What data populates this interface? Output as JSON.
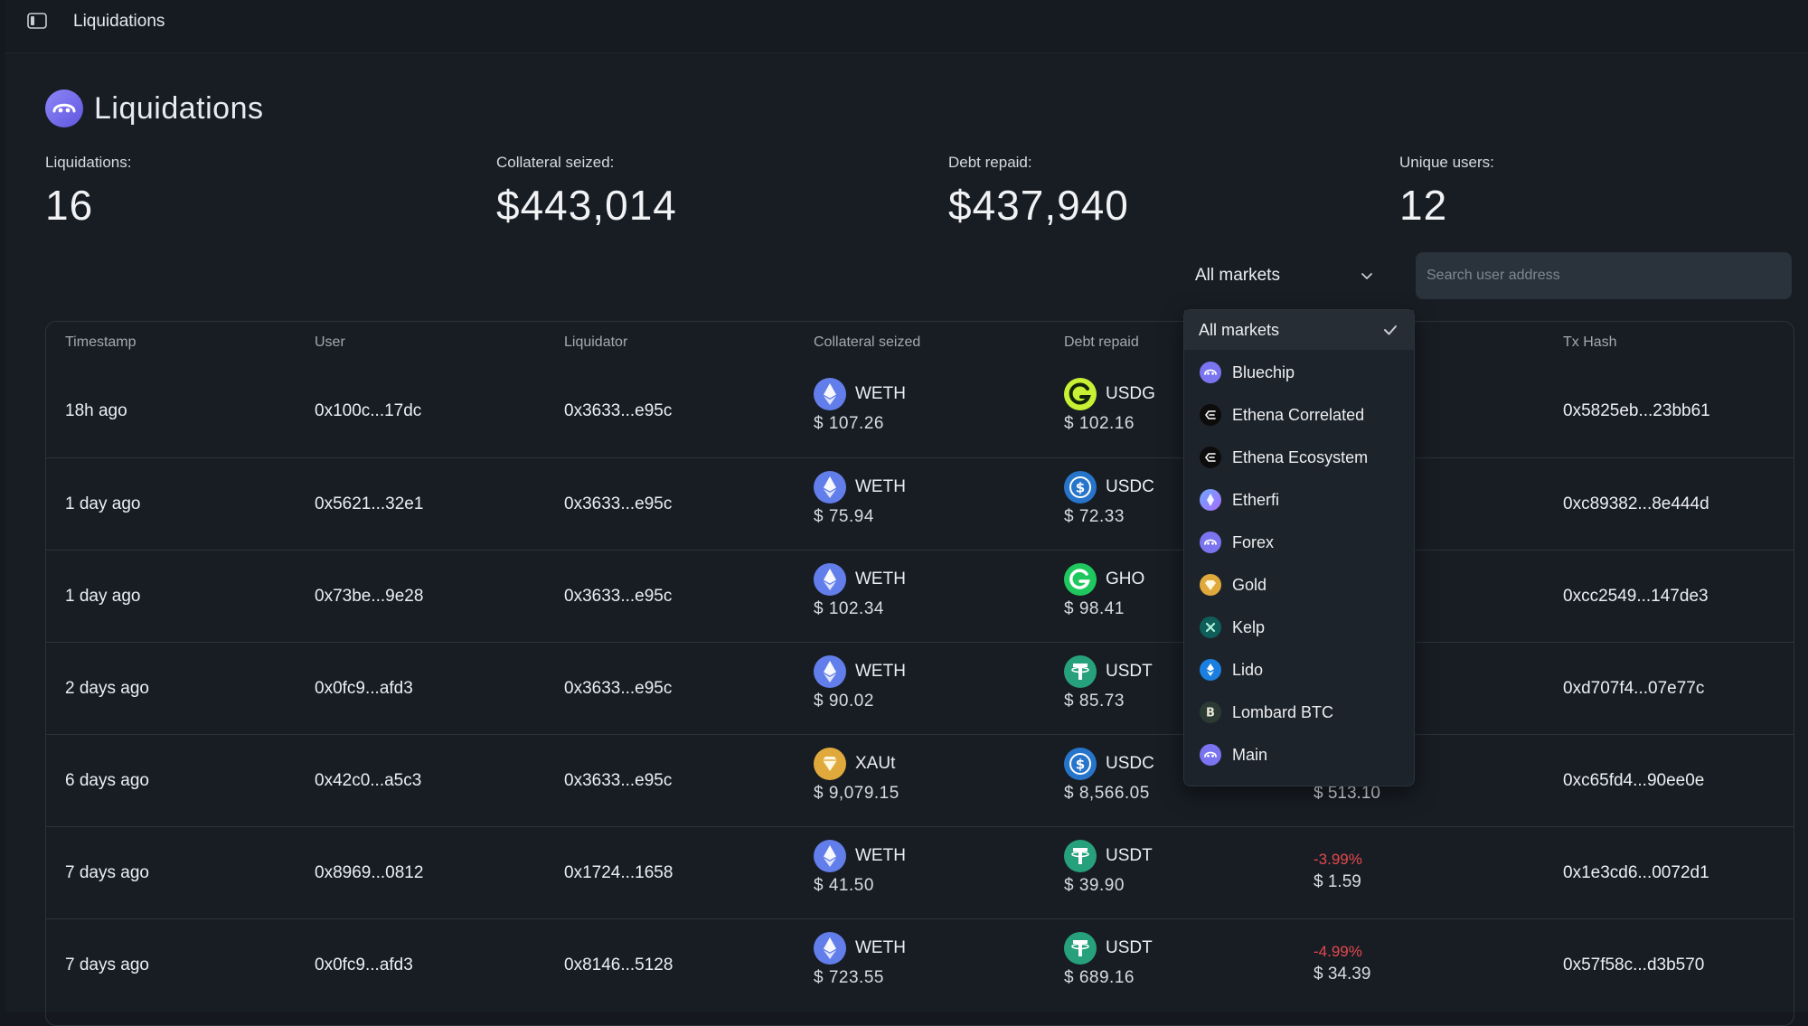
{
  "topbar": {
    "title": "Liquidations",
    "sidebar_icon": "sidebar-toggle-icon"
  },
  "page": {
    "title": "Liquidations",
    "logo_icon": "morpho-logo-icon"
  },
  "stats": [
    {
      "label": "Liquidations:",
      "value": "16"
    },
    {
      "label": "Collateral seized:",
      "value": "$443,014"
    },
    {
      "label": "Debt repaid:",
      "value": "$437,940"
    },
    {
      "label": "Unique users:",
      "value": "12"
    }
  ],
  "filters": {
    "market_select": "All markets",
    "search_placeholder": "Search user address"
  },
  "table": {
    "headers": [
      "Timestamp",
      "User",
      "Liquidator",
      "Collateral seized",
      "Debt repaid",
      "",
      "Tx Hash"
    ],
    "rows": [
      {
        "timestamp": "18h ago",
        "user": "0x100c...17dc",
        "liquidator": "0x3633...e95c",
        "collateral": {
          "symbol": "WETH",
          "usd": "$ 107.26",
          "icon": "eth-icon"
        },
        "debt": {
          "symbol": "USDG",
          "usd": "$ 102.16",
          "icon": "usdg-icon"
        },
        "extra_pct": "",
        "extra_amt": "",
        "tx": "0x5825eb...23bb61"
      },
      {
        "timestamp": "1 day ago",
        "user": "0x5621...32e1",
        "liquidator": "0x3633...e95c",
        "collateral": {
          "symbol": "WETH",
          "usd": "$ 75.94",
          "icon": "eth-icon"
        },
        "debt": {
          "symbol": "USDC",
          "usd": "$ 72.33",
          "icon": "usdc-icon"
        },
        "extra_pct": "",
        "extra_amt": "",
        "tx": "0xc89382...8e444d"
      },
      {
        "timestamp": "1 day ago",
        "user": "0x73be...9e28",
        "liquidator": "0x3633...e95c",
        "collateral": {
          "symbol": "WETH",
          "usd": "$ 102.34",
          "icon": "eth-icon"
        },
        "debt": {
          "symbol": "GHO",
          "usd": "$ 98.41",
          "icon": "gho-icon"
        },
        "extra_pct": "",
        "extra_amt": "",
        "tx": "0xcc2549...147de3"
      },
      {
        "timestamp": "2 days ago",
        "user": "0x0fc9...afd3",
        "liquidator": "0x3633...e95c",
        "collateral": {
          "symbol": "WETH",
          "usd": "$ 90.02",
          "icon": "eth-icon"
        },
        "debt": {
          "symbol": "USDT",
          "usd": "$ 85.73",
          "icon": "usdt-icon"
        },
        "extra_pct": "",
        "extra_amt": "",
        "tx": "0xd707f4...07e77c"
      },
      {
        "timestamp": "6 days ago",
        "user": "0x42c0...a5c3",
        "liquidator": "0x3633...e95c",
        "collateral": {
          "symbol": "XAUt",
          "usd": "$ 9,079.15",
          "icon": "xaut-icon"
        },
        "debt": {
          "symbol": "USDC",
          "usd": "$ 8,566.05",
          "icon": "usdc-icon"
        },
        "extra_pct": "",
        "extra_amt": "$ 513.10",
        "tx": "0xc65fd4...90ee0e"
      },
      {
        "timestamp": "7 days ago",
        "user": "0x8969...0812",
        "liquidator": "0x1724...1658",
        "collateral": {
          "symbol": "WETH",
          "usd": "$ 41.50",
          "icon": "eth-icon"
        },
        "debt": {
          "symbol": "USDT",
          "usd": "$ 39.90",
          "icon": "usdt-icon"
        },
        "extra_pct": "-3.99%",
        "extra_amt": "$ 1.59",
        "tx": "0x1e3cd6...0072d1"
      },
      {
        "timestamp": "7 days ago",
        "user": "0x0fc9...afd3",
        "liquidator": "0x8146...5128",
        "collateral": {
          "symbol": "WETH",
          "usd": "$ 723.55",
          "icon": "eth-icon"
        },
        "debt": {
          "symbol": "USDT",
          "usd": "$ 689.16",
          "icon": "usdt-icon"
        },
        "extra_pct": "-4.99%",
        "extra_amt": "$ 34.39",
        "tx": "0x57f58c...d3b570"
      }
    ]
  },
  "dropdown": {
    "items": [
      {
        "label": "All markets",
        "selected": true,
        "icon": "check-icon"
      },
      {
        "label": "Bluechip",
        "icon": "bluechip-icon"
      },
      {
        "label": "Ethena Correlated",
        "icon": "ethena-icon"
      },
      {
        "label": "Ethena Ecosystem",
        "icon": "ethena-icon"
      },
      {
        "label": "Etherfi",
        "icon": "etherfi-icon"
      },
      {
        "label": "Forex",
        "icon": "forex-icon"
      },
      {
        "label": "Gold",
        "icon": "gold-icon"
      },
      {
        "label": "Kelp",
        "icon": "kelp-icon"
      },
      {
        "label": "Lido",
        "icon": "lido-icon"
      },
      {
        "label": "Lombard BTC",
        "icon": "lombard-btc-icon"
      },
      {
        "label": "Main",
        "icon": "main-icon"
      }
    ]
  },
  "colors": {
    "background": "#181d24",
    "accent": "#7b74f0",
    "negative": "#e5484d",
    "border": "#2b323a"
  }
}
